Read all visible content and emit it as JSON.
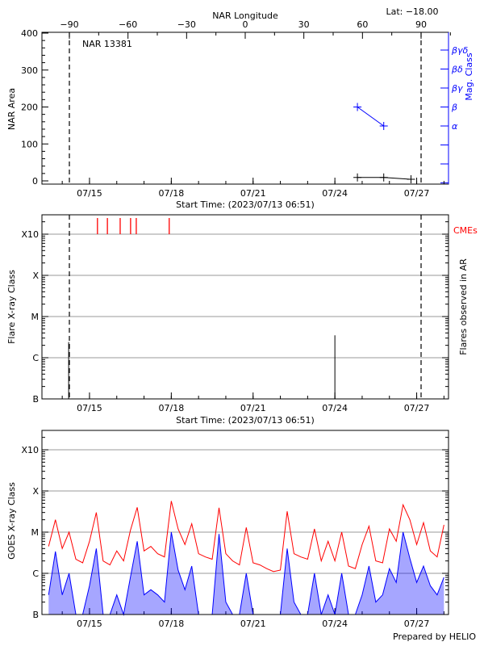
{
  "chart_data": [
    {
      "type": "line",
      "title": "NAR 13381",
      "corner_label": "Lat: −18.00",
      "top_axis_label": "NAR Longitude",
      "top_ticks": [
        "−90",
        "−60",
        "−30",
        "0",
        "30",
        "60",
        "90"
      ],
      "top_tick_values": [
        -90,
        -60,
        -30,
        0,
        30,
        60,
        90
      ],
      "xlabel": "Start Time: (2023/07/13 06:51)",
      "x_start": "07/13 06:51",
      "x_ticks": [
        "07/15",
        "07/18",
        "07/21",
        "07/24",
        "07/27"
      ],
      "ylabel": "NAR Area",
      "ylim": [
        0,
        400
      ],
      "y_ticks": [
        "0",
        "100",
        "200",
        "300",
        "400"
      ],
      "y2label": "Mag. Class",
      "y2_ticks": [
        "α",
        "β",
        "βγ",
        "βδ",
        "βγδ"
      ],
      "limb_longitudes": [
        -90,
        90
      ],
      "series": [
        {
          "x": [
            "07/24 19:50",
            "07/25 19:00",
            "07/26 19:00"
          ],
          "values": [
            5,
            5,
            0
          ],
          "color": "#000000"
        },
        {
          "x": [
            "07/24 19:50",
            "07/25 19:00"
          ],
          "values": [
            "β",
            "α"
          ],
          "color": "#0000ff"
        }
      ]
    },
    {
      "type": "bar",
      "xlabel": "Start Time: (2023/07/13 06:51)",
      "x_ticks": [
        "07/15",
        "07/18",
        "07/21",
        "07/24",
        "07/27"
      ],
      "ylabel": "Flare X-ray Class",
      "y2label": "Flares observed in AR",
      "y_scale": "log",
      "y_ticks": [
        "B",
        "C",
        "M",
        "X",
        "X10"
      ],
      "grid": true,
      "flares": {
        "x": [
          "07/14 05:40",
          "07/24 00:00"
        ],
        "values": [
          "C2.4",
          "C3.5"
        ],
        "color": "#000000"
      },
      "cmes": {
        "label": "CMEs",
        "color": "#ff0000",
        "x": [
          "07/15 07:00",
          "07/15 15:45",
          "07/16 03:00",
          "07/16 12:10",
          "07/16 17:10",
          "07/17 22:10"
        ]
      }
    },
    {
      "type": "line",
      "ylabel": "GOES X-ray Class",
      "y_scale": "log",
      "y_ticks": [
        "B",
        "C",
        "M",
        "X",
        "X10"
      ],
      "x_ticks": [
        "07/15",
        "07/18",
        "07/21",
        "07/24",
        "07/27"
      ],
      "grid": true,
      "footer": "Prepared by HELIO",
      "x": [
        "07/13 12:00",
        "07/13 18:00",
        "07/14 00:00",
        "07/14 06:00",
        "07/14 12:00",
        "07/14 18:00",
        "07/15 00:00",
        "07/15 06:00",
        "07/15 12:00",
        "07/15 18:00",
        "07/16 00:00",
        "07/16 06:00",
        "07/16 12:00",
        "07/16 18:00",
        "07/17 00:00",
        "07/17 06:00",
        "07/17 12:00",
        "07/17 18:00",
        "07/18 00:00",
        "07/18 06:00",
        "07/18 12:00",
        "07/18 18:00",
        "07/19 00:00",
        "07/19 06:00",
        "07/19 12:00",
        "07/19 18:00",
        "07/20 00:00",
        "07/20 06:00",
        "07/20 12:00",
        "07/20 18:00",
        "07/21 00:00",
        "07/21 06:00",
        "07/21 12:00",
        "07/21 18:00",
        "07/22 00:00",
        "07/22 06:00",
        "07/22 12:00",
        "07/22 18:00",
        "07/23 00:00",
        "07/23 06:00",
        "07/23 12:00",
        "07/23 18:00",
        "07/24 00:00",
        "07/24 06:00",
        "07/24 12:00",
        "07/24 18:00",
        "07/25 00:00",
        "07/25 06:00",
        "07/25 12:00",
        "07/25 18:00",
        "07/26 00:00",
        "07/26 06:00",
        "07/26 12:00",
        "07/26 18:00",
        "07/27 00:00",
        "07/27 06:00",
        "07/27 12:00",
        "07/27 18:00",
        "07/28 00:00"
      ],
      "series": [
        {
          "color": "#ff0000",
          "values": [
            4.5e-06,
            2e-05,
            4e-06,
            1e-05,
            2.2e-06,
            1.8e-06,
            6e-06,
            3e-05,
            2e-06,
            1.6e-06,
            3.5e-06,
            2e-06,
            1.1e-05,
            4e-05,
            3.5e-06,
            4.5e-06,
            3e-06,
            2.5e-06,
            5.7e-05,
            1.2e-05,
            5e-06,
            1.6e-05,
            3e-06,
            2.5e-06,
            2.2e-06,
            3.9e-05,
            3e-06,
            2e-06,
            1.6e-06,
            1.3e-05,
            1.8e-06,
            1.6e-06,
            1.3e-06,
            1.1e-06,
            1.2e-06,
            3.2e-05,
            3e-06,
            2.5e-06,
            2.2e-06,
            1.2e-05,
            2e-06,
            6e-06,
            2e-06,
            1e-05,
            1.5e-06,
            1.3e-06,
            5e-06,
            1.4e-05,
            2e-06,
            1.8e-06,
            1.2e-05,
            6e-06,
            4.6e-05,
            2e-05,
            5e-06,
            1.7e-05,
            3.5e-06,
            2.5e-06,
            1.5e-05
          ]
        },
        {
          "color": "#0000ff",
          "values": [
            3e-07,
            3.4e-06,
            3e-07,
            1e-06,
            1e-07,
            1e-07,
            5e-07,
            4e-06,
            1e-07,
            1e-07,
            3e-07,
            1e-07,
            8e-07,
            6e-06,
            3e-07,
            4e-07,
            3e-07,
            2e-07,
            1e-05,
            1.2e-06,
            4e-07,
            1.5e-06,
            1e-07,
            1e-07,
            1e-07,
            9e-06,
            2e-07,
            1e-07,
            1e-07,
            1e-06,
            1e-07,
            1e-07,
            1e-07,
            1e-07,
            1e-07,
            4e-06,
            2e-07,
            1e-07,
            1e-07,
            1e-06,
            1e-07,
            3e-07,
            1e-07,
            1e-06,
            1e-07,
            1e-07,
            3e-07,
            1.5e-06,
            2e-07,
            3e-07,
            1.3e-06,
            6e-07,
            1e-05,
            2.3e-06,
            6e-07,
            1.5e-06,
            5e-07,
            3e-07,
            8e-07
          ]
        }
      ]
    }
  ]
}
